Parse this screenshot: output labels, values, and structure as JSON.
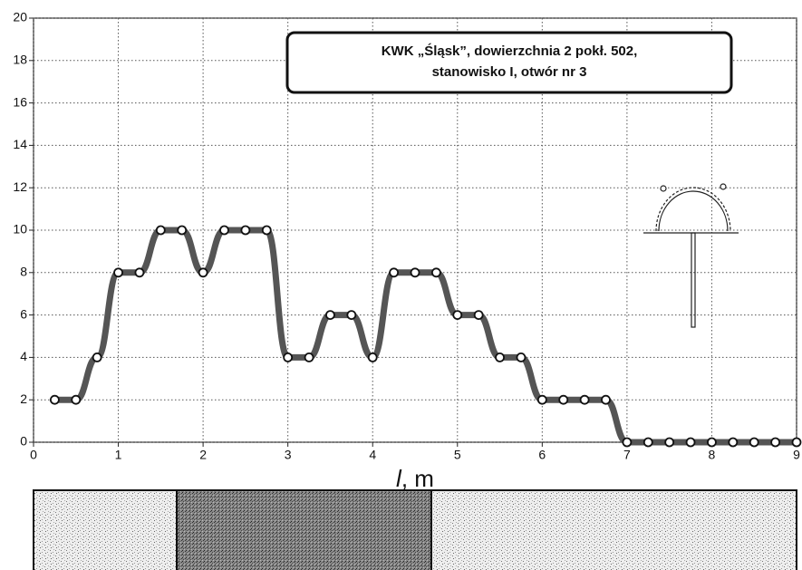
{
  "chart_data": {
    "type": "line",
    "title": [
      "KWK „Śląsk”, dowierzchnia 2 pokł. 502,",
      "stanowisko I, otwór nr 3"
    ],
    "x_label": {
      "variable": "l",
      "unit": ", m"
    },
    "x": [
      0.25,
      0.5,
      0.75,
      1.0,
      1.25,
      1.5,
      1.75,
      2.0,
      2.25,
      2.5,
      2.75,
      3.0,
      3.25,
      3.5,
      3.75,
      4.0,
      4.25,
      4.5,
      4.75,
      5.0,
      5.25,
      5.5,
      5.75,
      6.0,
      6.25,
      6.5,
      6.75,
      7.0,
      7.25,
      7.5,
      7.75,
      8.0,
      8.25,
      8.5,
      8.75,
      9.0
    ],
    "series": [
      {
        "color": "#555555",
        "values": [
          2,
          2,
          4,
          8,
          8,
          10,
          10,
          8,
          10,
          10,
          10,
          4,
          4,
          6,
          6,
          4,
          8,
          8,
          8,
          6,
          6,
          4,
          4,
          2,
          2,
          2,
          2,
          0,
          0,
          0,
          0,
          0,
          0,
          0,
          0,
          0
        ]
      }
    ],
    "xlim": [
      0,
      9
    ],
    "xticks": [
      0,
      1,
      2,
      3,
      4,
      5,
      6,
      7,
      8,
      9
    ],
    "ylim": [
      0,
      20
    ],
    "yticks": [
      0,
      2,
      4,
      6,
      8,
      10,
      12,
      14,
      16,
      18,
      20
    ],
    "grid": true
  }
}
